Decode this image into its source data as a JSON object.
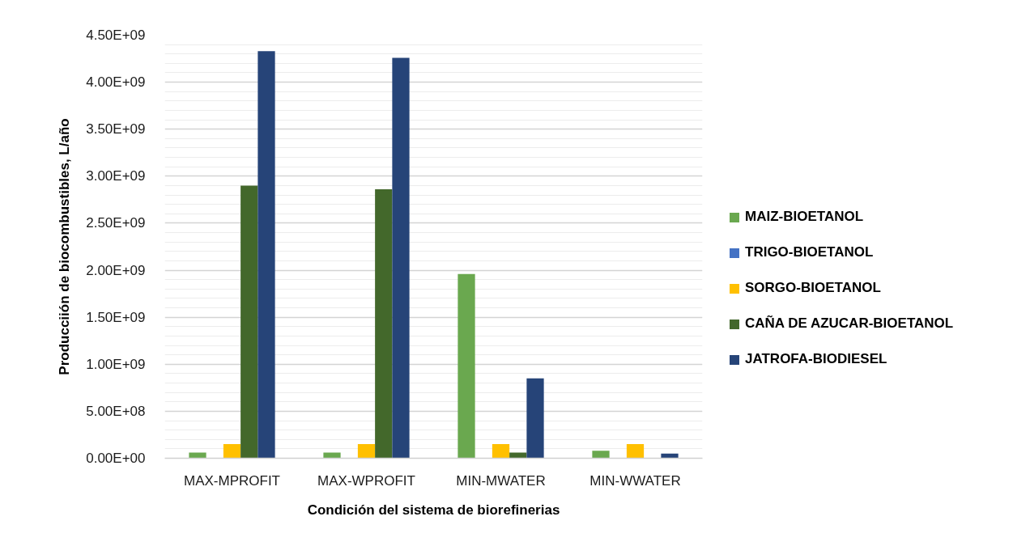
{
  "chart_data": {
    "type": "bar",
    "xlabel": "Condición del sistema de biorefinerias",
    "ylabel": "Producciión de biocombustibles, L/año",
    "categories": [
      "MAX-MPROFIT",
      "MAX-WPROFIT",
      "MIN-MWATER",
      "MIN-WWATER"
    ],
    "series": [
      {
        "name": "MAIZ-BIOETANOL",
        "color": "#6aa84f",
        "values": [
          60000000.0,
          60000000.0,
          1960000000.0,
          80000000.0
        ]
      },
      {
        "name": "TRIGO-BIOETANOL",
        "color": "#4472c4",
        "values": [
          null,
          null,
          null,
          null
        ]
      },
      {
        "name": "SORGO-BIOETANOL",
        "color": "#ffc000",
        "values": [
          150000000.0,
          150000000.0,
          150000000.0,
          150000000.0
        ]
      },
      {
        "name": "CAÑA DE AZUCAR-BIOETANOL",
        "color": "#43682b",
        "values": [
          2900000000.0,
          2860000000.0,
          60000000.0,
          null
        ]
      },
      {
        "name": "JATROFA-BIODIESEL",
        "color": "#264478",
        "values": [
          4330000000.0,
          4260000000.0,
          850000000.0,
          50000000.0
        ]
      }
    ],
    "ylim": [
      0,
      4500000000.0
    ],
    "yticks": [
      {
        "value": 0,
        "label": "0.00E+00"
      },
      {
        "value": 500000000.0,
        "label": "5.00E+08"
      },
      {
        "value": 1000000000.0,
        "label": "1.00E+09"
      },
      {
        "value": 1500000000.0,
        "label": "1.50E+09"
      },
      {
        "value": 2000000000.0,
        "label": "2.00E+09"
      },
      {
        "value": 2500000000.0,
        "label": "2.50E+09"
      },
      {
        "value": 3000000000.0,
        "label": "3.00E+09"
      },
      {
        "value": 3500000000.0,
        "label": "3.50E+09"
      },
      {
        "value": 4000000000.0,
        "label": "4.00E+09"
      },
      {
        "value": 4500000000.0,
        "label": "4.50E+09"
      }
    ],
    "grid": "y",
    "legend": "right"
  }
}
